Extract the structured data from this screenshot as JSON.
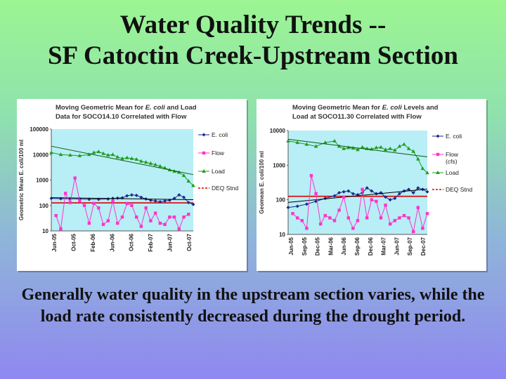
{
  "title": {
    "line1": "Water Quality Trends --",
    "line2": "SF Catoctin Creek-Upstream Section"
  },
  "caption": "Generally water quality in the upstream section varies, while the load rate consistently decreased during the drought period.",
  "colors": {
    "ecoli": "#1a2a8c",
    "flow": "#ff33cc",
    "load": "#1e9e1e",
    "deq": "#e00000",
    "plot_bg": "#b8eef6"
  },
  "chart_data": [
    {
      "type": "line",
      "title_line1": "Moving Geometric Mean for",
      "title_italic": "E. coli",
      "title_line1_end": "and Load",
      "title_line2": "Data for SOCO14.10 Correlated with Flow",
      "ylabel": "Geometric Mean E. coli/100 ml",
      "yscale": "log",
      "ylim": [
        10,
        100000
      ],
      "y_ticks": [
        "10",
        "100",
        "1000",
        "10000",
        "100000"
      ],
      "x_ticks": [
        "Jun-05",
        "Oct-05",
        "Feb-06",
        "Jun-06",
        "Oct-06",
        "Feb-07",
        "Jun-07",
        "Oct-07"
      ],
      "x_range": [
        0,
        30
      ],
      "deq_standard": 126,
      "legend_position": "right",
      "legend": [
        "E. coli",
        "Flow",
        "Load",
        "DEQ Stnd"
      ],
      "series": [
        {
          "name": "E. coli",
          "x": [
            0,
            2,
            4,
            6,
            8,
            10,
            12,
            13,
            14,
            15,
            16,
            17,
            18,
            19,
            20,
            21,
            22,
            23,
            24,
            25,
            26,
            27,
            28,
            29,
            30
          ],
          "values": [
            190,
            185,
            185,
            180,
            175,
            175,
            180,
            190,
            195,
            200,
            240,
            260,
            250,
            210,
            180,
            160,
            150,
            140,
            150,
            160,
            190,
            260,
            210,
            130,
            110
          ]
        },
        {
          "name": "Flow",
          "x": [
            1,
            2,
            3,
            4,
            5,
            6,
            7,
            8,
            9,
            10,
            11,
            12,
            13,
            14,
            15,
            16,
            17,
            18,
            19,
            20,
            21,
            22,
            23,
            24,
            25,
            26,
            27,
            28,
            29
          ],
          "values": [
            40,
            12,
            300,
            130,
            1200,
            150,
            100,
            20,
            120,
            80,
            18,
            25,
            150,
            20,
            35,
            120,
            100,
            35,
            15,
            80,
            25,
            50,
            20,
            18,
            35,
            35,
            12,
            35,
            45
          ]
        },
        {
          "name": "Load",
          "x": [
            0,
            2,
            4,
            6,
            8,
            9,
            10,
            11,
            12,
            13,
            14,
            15,
            16,
            17,
            18,
            19,
            20,
            21,
            22,
            23,
            24,
            25,
            26,
            27,
            28,
            29,
            30
          ],
          "values": [
            12000,
            10000,
            9500,
            9000,
            10000,
            12000,
            13000,
            11000,
            9500,
            10000,
            8000,
            7000,
            7500,
            7000,
            6500,
            5500,
            5000,
            4500,
            4000,
            3500,
            3000,
            2500,
            2200,
            2000,
            1500,
            900,
            600
          ]
        }
      ]
    },
    {
      "type": "line",
      "title_line1": "Moving Geometric Mean for",
      "title_italic": "E. coli",
      "title_line1_end": "Levels and",
      "title_line2": "Load at SOCO11.30 Correlated with Flow",
      "ylabel": "Geomean E. coli/100 ml",
      "yscale": "log",
      "ylim": [
        10,
        10000
      ],
      "y_ticks": [
        "10",
        "100",
        "1000",
        "10000"
      ],
      "x_ticks": [
        "Jun-05",
        "Sep-05",
        "Dec-05",
        "Mar-06",
        "Jun-06",
        "Sep-06",
        "Dec-06",
        "Mar-07",
        "Jun-07",
        "Sep-07",
        "Dec-07"
      ],
      "x_range": [
        0,
        30
      ],
      "deq_standard": 126,
      "legend_position": "right",
      "legend": [
        "E. coli",
        "Flow (cfs)",
        "Load",
        "DEQ Stnd"
      ],
      "series": [
        {
          "name": "E. coli",
          "x": [
            0,
            2,
            4,
            6,
            8,
            10,
            11,
            12,
            13,
            14,
            15,
            16,
            17,
            18,
            19,
            20,
            21,
            22,
            23,
            24,
            25,
            26,
            27,
            28,
            29,
            30
          ],
          "values": [
            60,
            65,
            75,
            90,
            110,
            130,
            160,
            170,
            180,
            150,
            140,
            160,
            220,
            180,
            150,
            160,
            120,
            100,
            110,
            150,
            180,
            200,
            160,
            220,
            200,
            170
          ]
        },
        {
          "name": "Flow (cfs)",
          "x": [
            1,
            2,
            3,
            4,
            5,
            6,
            7,
            8,
            9,
            10,
            11,
            12,
            13,
            14,
            15,
            16,
            17,
            18,
            19,
            20,
            21,
            22,
            23,
            24,
            25,
            26,
            27,
            28,
            29,
            30
          ],
          "values": [
            40,
            30,
            25,
            15,
            500,
            150,
            20,
            35,
            30,
            25,
            50,
            120,
            30,
            15,
            25,
            200,
            30,
            100,
            90,
            30,
            70,
            20,
            25,
            30,
            35,
            30,
            12,
            60,
            15,
            40
          ]
        },
        {
          "name": "Load",
          "x": [
            0,
            2,
            4,
            6,
            8,
            10,
            11,
            12,
            13,
            14,
            15,
            16,
            17,
            18,
            19,
            20,
            21,
            22,
            23,
            24,
            25,
            26,
            27,
            28,
            29,
            30
          ],
          "values": [
            5000,
            4500,
            4000,
            3500,
            4500,
            5000,
            3500,
            3000,
            3200,
            3100,
            2800,
            3300,
            3000,
            2900,
            3200,
            3300,
            2800,
            3000,
            2700,
            3500,
            4000,
            3000,
            2500,
            1500,
            800,
            600
          ]
        }
      ]
    }
  ]
}
